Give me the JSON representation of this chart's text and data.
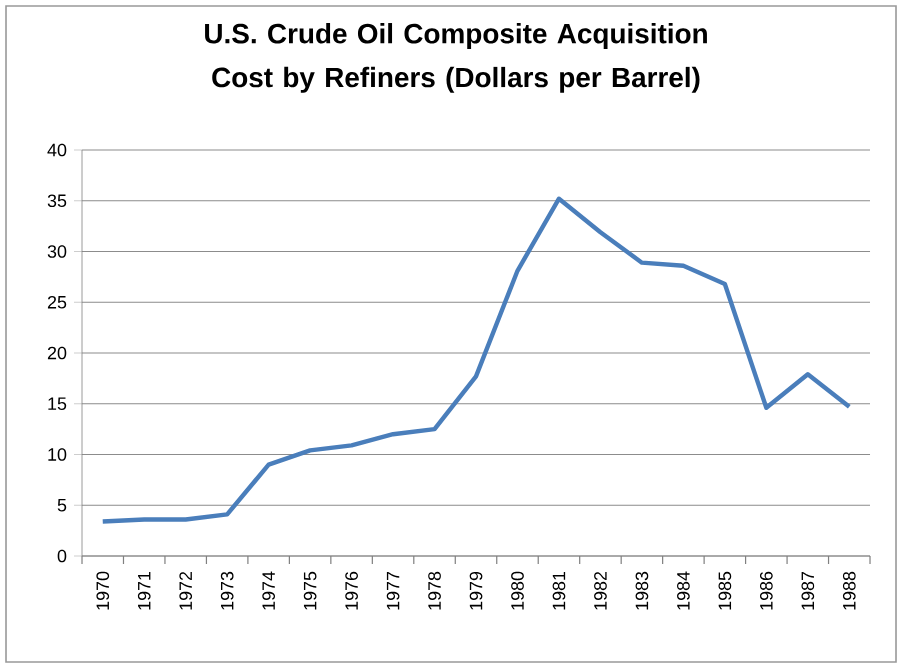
{
  "chart_data": {
    "type": "line",
    "title": "U.S. Crude Oil Composite Acquisition Cost by Refiners (Dollars per Barrel)",
    "categories": [
      "1970",
      "1971",
      "1972",
      "1973",
      "1974",
      "1975",
      "1976",
      "1977",
      "1978",
      "1979",
      "1980",
      "1981",
      "1982",
      "1983",
      "1984",
      "1985",
      "1986",
      "1987",
      "1988"
    ],
    "series": [
      {
        "color": "#4a7ebb",
        "values": [
          3.4,
          3.6,
          3.6,
          4.1,
          9.0,
          10.4,
          10.9,
          12.0,
          12.5,
          17.7,
          28.1,
          35.2,
          31.9,
          28.9,
          28.6,
          26.8,
          14.6,
          17.9,
          14.7
        ]
      }
    ],
    "ylim": [
      0,
      40
    ],
    "yticks": [
      0,
      5,
      10,
      15,
      20,
      25,
      30,
      35,
      40
    ],
    "grid": "y",
    "marker": "none",
    "line_style": "solid"
  }
}
